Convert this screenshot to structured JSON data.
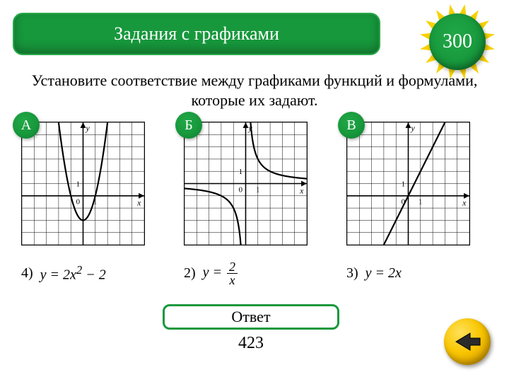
{
  "colors": {
    "brand_green": "#17983c",
    "brand_green_border": "#2aa84a",
    "sunburst_yellow": "#f8d100",
    "back_btn_gradient": [
      "#ffe15a",
      "#f9c600",
      "#c68900"
    ],
    "arrow_fill": "#2a2a2a",
    "grid": "#000000",
    "curve": "#000000",
    "page_bg": "#ffffff"
  },
  "header": {
    "title": "Задания с графиками",
    "points": "300"
  },
  "question": "Установите соответствие между графиками функций и формулами, которые их задают.",
  "graphs": [
    {
      "letter": "А",
      "type": "parabola",
      "axis_labels": {
        "x": "x",
        "y": "y",
        "origin": "0",
        "unit_x": "1",
        "unit_y": "1"
      },
      "grid": {
        "cols": 10,
        "rows": 10,
        "origin_col": 5,
        "origin_row": 6
      },
      "curve": {
        "a": 2,
        "b": 0,
        "c": -2
      }
    },
    {
      "letter": "Б",
      "type": "hyperbola",
      "axis_labels": {
        "x": "x",
        "y": "y",
        "origin": "0",
        "unit_x": "1",
        "unit_y": "1"
      },
      "grid": {
        "cols": 10,
        "rows": 10,
        "origin_col": 5,
        "origin_row": 5
      },
      "curve": {
        "k": 2
      }
    },
    {
      "letter": "В",
      "type": "line",
      "axis_labels": {
        "x": "x",
        "y": "y",
        "origin": "0",
        "unit_x": "1",
        "unit_y": "1"
      },
      "grid": {
        "cols": 10,
        "rows": 10,
        "origin_col": 5,
        "origin_row": 6
      },
      "curve": {
        "m": 2,
        "b": 0
      }
    }
  ],
  "formulas": [
    {
      "number": "4)",
      "expr_html": "y = 2x<sup>2</sup> − 2"
    },
    {
      "number": "2)",
      "expr_html": "y = <span class=\"frac\"><span class=\"top\">2</span><span class=\"bot\">x</span></span>"
    },
    {
      "number": "3)",
      "expr_html": "y = 2x"
    }
  ],
  "answer": {
    "button_label": "Ответ",
    "value": "423"
  },
  "back_button": {
    "semantic": "back-arrow"
  }
}
